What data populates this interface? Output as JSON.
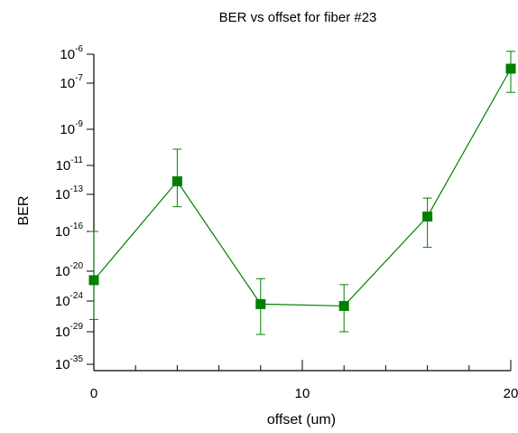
{
  "chart_data": {
    "type": "line",
    "title": "BER vs offset for fiber #23",
    "xlabel": "offset (um)",
    "ylabel": "BER",
    "x_scale": "linear",
    "y_scale": "nonuniform-log",
    "xlim": [
      0,
      20
    ],
    "x_ticks": [
      {
        "value": 0,
        "label": "0"
      },
      {
        "value": 10,
        "label": "10"
      },
      {
        "value": 20,
        "label": "20"
      }
    ],
    "x_minor_ticks": [
      2,
      4,
      6,
      8,
      12,
      14,
      16,
      18
    ],
    "y_ticks": [
      {
        "exp": -6,
        "base": "10",
        "sup": "-6"
      },
      {
        "exp": -7,
        "base": "10",
        "sup": "-7"
      },
      {
        "exp": -9,
        "base": "10",
        "sup": "-9"
      },
      {
        "exp": -11,
        "base": "10",
        "sup": "-11"
      },
      {
        "exp": -13,
        "base": "10",
        "sup": "-13"
      },
      {
        "exp": -16,
        "base": "10",
        "sup": "-16"
      },
      {
        "exp": -20,
        "base": "10",
        "sup": "-20"
      },
      {
        "exp": -24,
        "base": "10",
        "sup": "-24"
      },
      {
        "exp": -29,
        "base": "10",
        "sup": "-29"
      },
      {
        "exp": -35,
        "base": "10",
        "sup": "-35"
      }
    ],
    "grid": false,
    "legend": "none",
    "series": [
      {
        "color": "#008000",
        "marker": "square",
        "points": [
          {
            "x": 0,
            "y_exp": -21.2,
            "err_low_exp": -27.0,
            "err_high_exp": -16.0
          },
          {
            "x": 4,
            "y_exp": -12.1,
            "err_low_exp": -14.0,
            "err_high_exp": -10.1
          },
          {
            "x": 8,
            "y_exp": -24.5,
            "err_low_exp": -29.5,
            "err_high_exp": -21.0
          },
          {
            "x": 12,
            "y_exp": -24.8,
            "err_low_exp": -29.0,
            "err_high_exp": -21.8
          },
          {
            "x": 16,
            "y_exp": -14.8,
            "err_low_exp": -17.6,
            "err_high_exp": -13.3
          },
          {
            "x": 20,
            "y_exp": -6.5,
            "err_low_exp": -7.4,
            "err_high_exp": -5.9
          }
        ]
      }
    ]
  }
}
